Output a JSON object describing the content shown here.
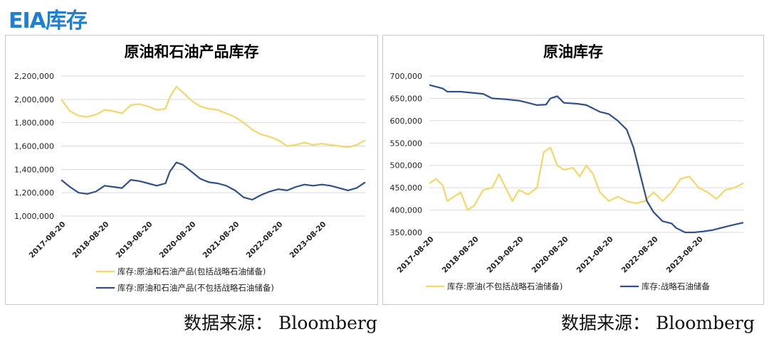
{
  "page": {
    "title": "EIA库存",
    "sources": [
      "数据来源：  Bloomberg",
      "数据来源：  Bloomberg"
    ]
  },
  "colors": {
    "yellow": "#f5d66a",
    "blue": "#30508a",
    "title_blue": "#1f7fd0",
    "grid": "#d9d9d9"
  },
  "chart_data": [
    {
      "type": "line",
      "title": "原油和石油产品库存",
      "xlabel": "",
      "ylabel": "",
      "ylim": [
        1000000,
        2200000
      ],
      "yticks": [
        "2,200,000",
        "2,000,000",
        "1,800,000",
        "1,600,000",
        "1,400,000",
        "1,200,000",
        "1,000,000"
      ],
      "ytick_values": [
        2200000,
        2000000,
        1800000,
        1600000,
        1400000,
        1200000,
        1000000
      ],
      "xticks": [
        "2017-08-20",
        "2018-08-20",
        "2019-08-20",
        "2020-08-20",
        "2021-08-20",
        "2022-08-20",
        "2023-08-20"
      ],
      "xlim": [
        2017.6,
        2024.6
      ],
      "grid": "horizontal",
      "legend_position": "bottom",
      "series": [
        {
          "name": "库存:原油和石油产品(包括战略石油储备)",
          "color": "#f5d66a",
          "x": [
            2017.6,
            2017.8,
            2018.0,
            2018.2,
            2018.4,
            2018.6,
            2018.8,
            2019.0,
            2019.2,
            2019.4,
            2019.6,
            2019.8,
            2020.0,
            2020.1,
            2020.25,
            2020.4,
            2020.6,
            2020.8,
            2021.0,
            2021.2,
            2021.4,
            2021.6,
            2021.8,
            2022.0,
            2022.2,
            2022.4,
            2022.6,
            2022.8,
            2023.0,
            2023.2,
            2023.4,
            2023.6,
            2023.8,
            2024.0,
            2024.2,
            2024.4,
            2024.6
          ],
          "y": [
            2000000,
            1900000,
            1860000,
            1850000,
            1870000,
            1910000,
            1900000,
            1880000,
            1950000,
            1960000,
            1940000,
            1910000,
            1920000,
            2020000,
            2110000,
            2060000,
            1990000,
            1940000,
            1920000,
            1910000,
            1880000,
            1850000,
            1800000,
            1740000,
            1700000,
            1680000,
            1650000,
            1600000,
            1610000,
            1630000,
            1610000,
            1620000,
            1610000,
            1600000,
            1590000,
            1610000,
            1650000
          ]
        },
        {
          "name": "库存:原油和石油产品(不包括战略石油储备)",
          "color": "#30508a",
          "x": [
            2017.6,
            2017.8,
            2018.0,
            2018.2,
            2018.4,
            2018.6,
            2018.8,
            2019.0,
            2019.2,
            2019.4,
            2019.6,
            2019.8,
            2020.0,
            2020.1,
            2020.25,
            2020.4,
            2020.6,
            2020.8,
            2021.0,
            2021.2,
            2021.4,
            2021.6,
            2021.8,
            2022.0,
            2022.2,
            2022.4,
            2022.6,
            2022.8,
            2023.0,
            2023.2,
            2023.4,
            2023.6,
            2023.8,
            2024.0,
            2024.2,
            2024.4,
            2024.6
          ],
          "y": [
            1310000,
            1250000,
            1200000,
            1190000,
            1210000,
            1260000,
            1250000,
            1240000,
            1310000,
            1300000,
            1280000,
            1260000,
            1280000,
            1380000,
            1460000,
            1440000,
            1380000,
            1320000,
            1290000,
            1280000,
            1260000,
            1220000,
            1160000,
            1140000,
            1180000,
            1210000,
            1230000,
            1220000,
            1250000,
            1270000,
            1260000,
            1270000,
            1260000,
            1240000,
            1220000,
            1240000,
            1290000
          ]
        }
      ]
    },
    {
      "type": "line",
      "title": "原油库存",
      "xlabel": "",
      "ylabel": "",
      "ylim": [
        350000,
        700000
      ],
      "yticks": [
        "700,000",
        "650,000",
        "600,000",
        "550,000",
        "500,000",
        "450,000",
        "400,000",
        "350,000"
      ],
      "ytick_values": [
        700000,
        650000,
        600000,
        550000,
        500000,
        450000,
        400000,
        350000
      ],
      "xticks": [
        "2017-08-20",
        "2018-08-20",
        "2019-08-20",
        "2020-08-20",
        "2021-08-20",
        "2022-08-20",
        "2023-08-20"
      ],
      "xlim": [
        2017.6,
        2024.6
      ],
      "grid": "horizontal",
      "legend_position": "bottom",
      "series": [
        {
          "name": "库存:原油(不包括战略石油储备)",
          "color": "#f5d66a",
          "x": [
            2017.6,
            2017.75,
            2017.9,
            2018.0,
            2018.15,
            2018.3,
            2018.45,
            2018.6,
            2018.8,
            2019.0,
            2019.15,
            2019.3,
            2019.45,
            2019.6,
            2019.8,
            2020.0,
            2020.15,
            2020.3,
            2020.45,
            2020.6,
            2020.8,
            2020.95,
            2021.1,
            2021.25,
            2021.4,
            2021.6,
            2021.8,
            2022.0,
            2022.2,
            2022.4,
            2022.6,
            2022.8,
            2023.0,
            2023.2,
            2023.4,
            2023.6,
            2023.8,
            2024.0,
            2024.2,
            2024.4,
            2024.6
          ],
          "y": [
            460000,
            470000,
            455000,
            420000,
            430000,
            440000,
            400000,
            410000,
            445000,
            450000,
            480000,
            450000,
            420000,
            445000,
            435000,
            450000,
            530000,
            540000,
            500000,
            490000,
            495000,
            475000,
            500000,
            480000,
            440000,
            420000,
            430000,
            420000,
            415000,
            420000,
            440000,
            420000,
            440000,
            470000,
            475000,
            450000,
            440000,
            425000,
            445000,
            450000,
            460000
          ]
        },
        {
          "name": "库存:战略石油储备",
          "color": "#30508a",
          "x": [
            2017.6,
            2017.9,
            2018.0,
            2018.3,
            2018.6,
            2018.8,
            2019.0,
            2019.3,
            2019.6,
            2019.8,
            2020.0,
            2020.2,
            2020.3,
            2020.45,
            2020.6,
            2020.9,
            2021.1,
            2021.4,
            2021.6,
            2021.8,
            2022.0,
            2022.15,
            2022.3,
            2022.45,
            2022.6,
            2022.8,
            2023.0,
            2023.1,
            2023.3,
            2023.5,
            2023.7,
            2023.9,
            2024.1,
            2024.3,
            2024.6
          ],
          "y": [
            680000,
            672000,
            665000,
            665000,
            662000,
            660000,
            650000,
            648000,
            645000,
            640000,
            635000,
            636000,
            650000,
            655000,
            640000,
            638000,
            635000,
            620000,
            615000,
            600000,
            580000,
            540000,
            480000,
            420000,
            395000,
            375000,
            370000,
            360000,
            350000,
            350000,
            352000,
            355000,
            360000,
            365000,
            372000
          ]
        }
      ]
    }
  ]
}
